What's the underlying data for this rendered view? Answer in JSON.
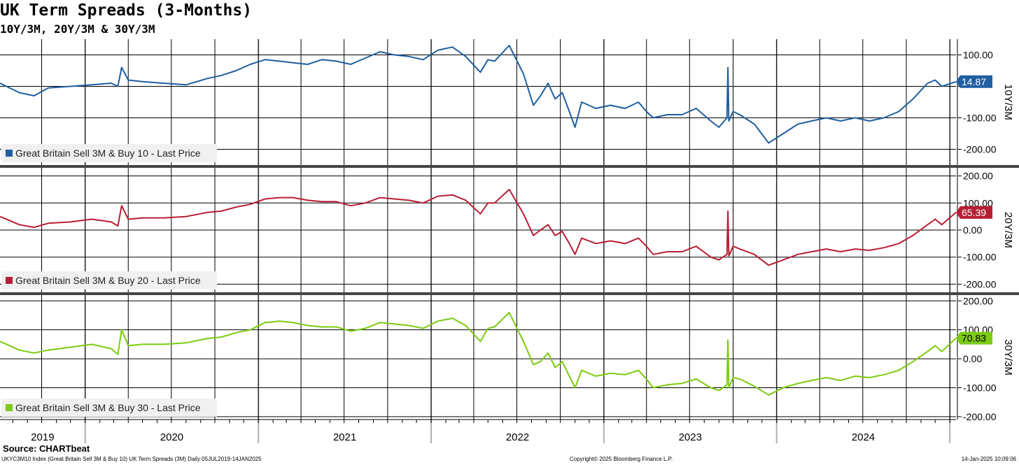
{
  "header": {
    "title": "UK Term Spreads (3-Months)",
    "subtitle": "10Y/3M, 20Y/3M & 30Y/3M"
  },
  "footer": {
    "source": "Source: CHARTbeat",
    "description": "UKYC3M10 Index (Great Britain Sell 3M & Buy 10) UK Term Spreads (3M)  Daily 05JUL2019-14JAN2025",
    "copyright": "Copyright© 2025 Bloomberg Finance L.P.",
    "timestamp": "14-Jan-2025 10:09:06"
  },
  "colors": {
    "series_10y": "#1f5fa0",
    "series_20y": "#b81e33",
    "series_30y": "#7ccb10",
    "grid": "#000000",
    "panel_divider": "#444444"
  },
  "chart_data": {
    "type": "line",
    "x_range": [
      "2019-07-05",
      "2025-01-14"
    ],
    "x_ticks": [
      "2019",
      "2020",
      "2021",
      "2022",
      "2023",
      "2024"
    ],
    "panels": [
      {
        "ylabel": "10Y/3M",
        "ylim": [
          -250,
          150
        ],
        "yticks": [
          100,
          0,
          -100,
          -200
        ],
        "ytick_labels": [
          "100.00",
          "",
          "-100.00",
          "-200.00"
        ],
        "last_value": "14.87",
        "legend": "Great Britain Sell 3M & Buy 10 - Last Price",
        "series": {
          "name": "Great Britain Sell 3M & Buy 10 - Last Price",
          "x": [
            "2019-07-05",
            "2019-08-15",
            "2019-09-15",
            "2019-10-15",
            "2019-12-01",
            "2020-01-15",
            "2020-02-25",
            "2020-03-10",
            "2020-03-18",
            "2020-04-01",
            "2020-05-01",
            "2020-06-15",
            "2020-08-01",
            "2020-09-15",
            "2020-10-15",
            "2020-11-15",
            "2020-12-15",
            "2021-01-15",
            "2021-02-15",
            "2021-03-15",
            "2021-04-15",
            "2021-05-15",
            "2021-06-15",
            "2021-07-15",
            "2021-08-15",
            "2021-09-15",
            "2021-10-15",
            "2021-11-15",
            "2021-12-15",
            "2022-01-15",
            "2022-02-15",
            "2022-03-15",
            "2022-04-15",
            "2022-05-01",
            "2022-05-15",
            "2022-06-15",
            "2022-07-15",
            "2022-08-05",
            "2022-08-20",
            "2022-09-05",
            "2022-09-20",
            "2022-10-05",
            "2022-10-20",
            "2022-11-01",
            "2022-11-15",
            "2022-12-15",
            "2023-01-15",
            "2023-02-15",
            "2023-03-15",
            "2023-04-01",
            "2023-04-15",
            "2023-05-15",
            "2023-06-15",
            "2023-07-15",
            "2023-08-15",
            "2023-09-01",
            "2023-09-18",
            "2023-09-20",
            "2023-09-22",
            "2023-10-01",
            "2023-10-15",
            "2023-11-15",
            "2023-12-15",
            "2024-01-15",
            "2024-02-15",
            "2024-03-15",
            "2024-04-15",
            "2024-05-15",
            "2024-06-15",
            "2024-07-15",
            "2024-08-15",
            "2024-09-15",
            "2024-10-15",
            "2024-11-15",
            "2024-12-01",
            "2024-12-15",
            "2025-01-14"
          ],
          "y": [
            10,
            -20,
            -30,
            -5,
            0,
            5,
            10,
            0,
            60,
            20,
            15,
            10,
            5,
            25,
            35,
            50,
            70,
            85,
            80,
            75,
            70,
            85,
            80,
            70,
            90,
            110,
            100,
            95,
            85,
            115,
            125,
            95,
            45,
            85,
            80,
            130,
            40,
            -60,
            -30,
            10,
            -40,
            -20,
            -80,
            -130,
            -50,
            -70,
            -60,
            -70,
            -50,
            -80,
            -100,
            -90,
            -90,
            -70,
            -110,
            -130,
            -100,
            60,
            -110,
            -80,
            -90,
            -120,
            -180,
            -150,
            -120,
            -110,
            -100,
            -110,
            -100,
            -110,
            -100,
            -80,
            -40,
            10,
            20,
            0,
            15
          ]
        }
      },
      {
        "ylabel": "20Y/3M",
        "ylim": [
          -230,
          230
        ],
        "yticks": [
          200,
          100,
          0,
          -100,
          -200
        ],
        "ytick_labels": [
          "200.00",
          "100.00",
          "0.00",
          "-100.00",
          "-200.00"
        ],
        "last_value": "65.39",
        "legend": "Great Britain Sell 3M & Buy 20 - Last Price",
        "series": {
          "name": "Great Britain Sell 3M & Buy 20 - Last Price",
          "x": [
            "2019-07-05",
            "2019-08-15",
            "2019-09-15",
            "2019-10-15",
            "2019-12-01",
            "2020-01-15",
            "2020-02-25",
            "2020-03-10",
            "2020-03-18",
            "2020-04-01",
            "2020-05-01",
            "2020-06-15",
            "2020-08-01",
            "2020-09-15",
            "2020-10-15",
            "2020-11-15",
            "2020-12-15",
            "2021-01-15",
            "2021-02-15",
            "2021-03-15",
            "2021-04-15",
            "2021-05-15",
            "2021-06-15",
            "2021-07-15",
            "2021-08-15",
            "2021-09-15",
            "2021-10-15",
            "2021-11-15",
            "2021-12-15",
            "2022-01-15",
            "2022-02-15",
            "2022-03-15",
            "2022-04-15",
            "2022-05-01",
            "2022-05-15",
            "2022-06-15",
            "2022-07-15",
            "2022-08-05",
            "2022-08-20",
            "2022-09-05",
            "2022-09-20",
            "2022-10-05",
            "2022-10-20",
            "2022-11-01",
            "2022-11-15",
            "2022-12-15",
            "2023-01-15",
            "2023-02-15",
            "2023-03-15",
            "2023-04-01",
            "2023-04-15",
            "2023-05-15",
            "2023-06-15",
            "2023-07-15",
            "2023-08-15",
            "2023-09-01",
            "2023-09-18",
            "2023-09-20",
            "2023-09-22",
            "2023-10-01",
            "2023-10-15",
            "2023-11-15",
            "2023-12-15",
            "2024-01-15",
            "2024-02-15",
            "2024-03-15",
            "2024-04-15",
            "2024-05-15",
            "2024-06-15",
            "2024-07-15",
            "2024-08-15",
            "2024-09-15",
            "2024-10-15",
            "2024-11-15",
            "2024-12-01",
            "2024-12-15",
            "2025-01-14"
          ],
          "y": [
            50,
            20,
            10,
            25,
            30,
            40,
            30,
            15,
            90,
            40,
            45,
            45,
            50,
            65,
            70,
            85,
            95,
            115,
            120,
            120,
            110,
            105,
            105,
            90,
            100,
            120,
            115,
            110,
            100,
            125,
            130,
            110,
            60,
            100,
            100,
            150,
            60,
            -20,
            0,
            20,
            -20,
            -5,
            -50,
            -90,
            -30,
            -50,
            -40,
            -50,
            -30,
            -60,
            -90,
            -80,
            -80,
            -60,
            -100,
            -110,
            -90,
            70,
            -95,
            -60,
            -70,
            -90,
            -130,
            -110,
            -90,
            -80,
            -70,
            -80,
            -70,
            -75,
            -65,
            -50,
            -20,
            20,
            40,
            20,
            65
          ]
        }
      },
      {
        "ylabel": "30Y/3M",
        "ylim": [
          -210,
          220
        ],
        "yticks": [
          200,
          100,
          0,
          -100,
          -200
        ],
        "ytick_labels": [
          "200.00",
          "100.00",
          "0.00",
          "-100.00",
          "-200.00"
        ],
        "last_value": "70.83",
        "legend": "Great Britain Sell 3M & Buy 30 - Last Price",
        "series": {
          "name": "Great Britain Sell 3M & Buy 30 - Last Price",
          "x": [
            "2019-07-05",
            "2019-08-15",
            "2019-09-15",
            "2019-10-15",
            "2019-12-01",
            "2020-01-15",
            "2020-02-25",
            "2020-03-10",
            "2020-03-18",
            "2020-04-01",
            "2020-05-01",
            "2020-06-15",
            "2020-08-01",
            "2020-09-15",
            "2020-10-15",
            "2020-11-15",
            "2020-12-15",
            "2021-01-15",
            "2021-02-15",
            "2021-03-15",
            "2021-04-15",
            "2021-05-15",
            "2021-06-15",
            "2021-07-15",
            "2021-08-15",
            "2021-09-15",
            "2021-10-15",
            "2021-11-15",
            "2021-12-15",
            "2022-01-15",
            "2022-02-15",
            "2022-03-15",
            "2022-04-15",
            "2022-05-01",
            "2022-05-15",
            "2022-06-15",
            "2022-07-15",
            "2022-08-05",
            "2022-08-20",
            "2022-09-05",
            "2022-09-20",
            "2022-10-05",
            "2022-10-20",
            "2022-11-01",
            "2022-11-15",
            "2022-12-15",
            "2023-01-15",
            "2023-02-15",
            "2023-03-15",
            "2023-04-01",
            "2023-04-15",
            "2023-05-15",
            "2023-06-15",
            "2023-07-15",
            "2023-08-15",
            "2023-09-01",
            "2023-09-18",
            "2023-09-20",
            "2023-09-22",
            "2023-10-01",
            "2023-10-15",
            "2023-11-15",
            "2023-12-15",
            "2024-01-15",
            "2024-02-15",
            "2024-03-15",
            "2024-04-15",
            "2024-05-15",
            "2024-06-15",
            "2024-07-15",
            "2024-08-15",
            "2024-09-15",
            "2024-10-15",
            "2024-11-15",
            "2024-12-01",
            "2024-12-15",
            "2025-01-14"
          ],
          "y": [
            60,
            30,
            20,
            30,
            40,
            50,
            35,
            15,
            100,
            45,
            50,
            50,
            55,
            70,
            75,
            90,
            100,
            125,
            130,
            125,
            115,
            110,
            110,
            95,
            105,
            125,
            120,
            115,
            105,
            130,
            140,
            115,
            60,
            105,
            110,
            160,
            60,
            -20,
            -10,
            20,
            -30,
            -10,
            -60,
            -100,
            -40,
            -60,
            -50,
            -55,
            -40,
            -70,
            -100,
            -90,
            -85,
            -70,
            -100,
            -110,
            -90,
            65,
            -100,
            -65,
            -70,
            -95,
            -125,
            -100,
            -85,
            -75,
            -65,
            -75,
            -60,
            -65,
            -55,
            -40,
            -10,
            25,
            45,
            25,
            71
          ]
        }
      }
    ]
  }
}
